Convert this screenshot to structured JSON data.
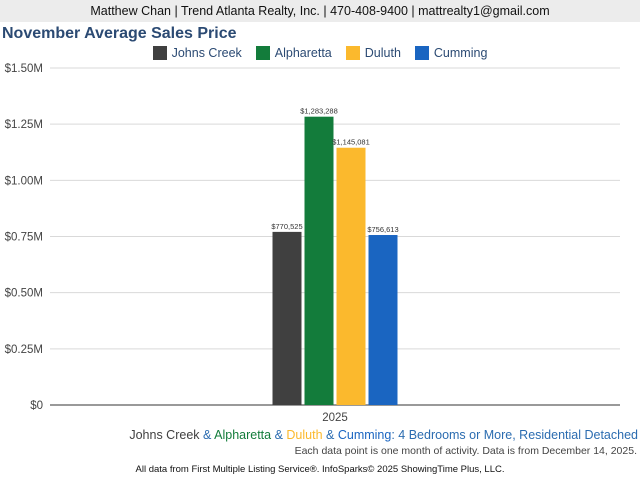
{
  "header": {
    "contact": "Matthew Chan | Trend Atlanta Realty, Inc. | 470-408-9400 | mattrealty1@gmail.com"
  },
  "chart_data": {
    "type": "bar",
    "title": "November Average Sales Price",
    "categories": [
      "2025"
    ],
    "series": [
      {
        "name": "Johns Creek",
        "color": "#404040",
        "values": [
          770525
        ],
        "label": "$770,525"
      },
      {
        "name": "Alpharetta",
        "color": "#137c3b",
        "values": [
          1283288
        ],
        "label": "$1,283,288"
      },
      {
        "name": "Duluth",
        "color": "#fbb92d",
        "values": [
          1145081
        ],
        "label": "$1,145,081"
      },
      {
        "name": "Cumming",
        "color": "#1a65c1",
        "values": [
          756613
        ],
        "label": "$756,613"
      }
    ],
    "ylim": [
      0,
      1500000
    ],
    "yticks": [
      {
        "value": 0,
        "label": "$0"
      },
      {
        "value": 250000,
        "label": "$0.25M"
      },
      {
        "value": 500000,
        "label": "$0.50M"
      },
      {
        "value": 750000,
        "label": "$0.75M"
      },
      {
        "value": 1000000,
        "label": "$1.00M"
      },
      {
        "value": 1250000,
        "label": "$1.25M"
      },
      {
        "value": 1500000,
        "label": "$1.50M"
      }
    ],
    "grid": true,
    "legend_position": "top-center"
  },
  "subtitle": {
    "parts": [
      {
        "text": "Johns Creek",
        "color": "#404040"
      },
      {
        "text": " & ",
        "color": "#2b6cb0"
      },
      {
        "text": "Alpharetta",
        "color": "#137c3b"
      },
      {
        "text": " & ",
        "color": "#2b6cb0"
      },
      {
        "text": "Duluth",
        "color": "#fbb92d"
      },
      {
        "text": " & ",
        "color": "#2b6cb0"
      },
      {
        "text": "Cumming",
        "color": "#1a65c1"
      },
      {
        "text": ": 4 Bedrooms or More, Residential Detached",
        "color": "#2b6cb0"
      }
    ]
  },
  "note": "Each data point is one month of activity. Data is from December 14, 2025.",
  "footer": "All data from First Multiple Listing Service®. InfoSparks© 2025 ShowingTime Plus, LLC."
}
